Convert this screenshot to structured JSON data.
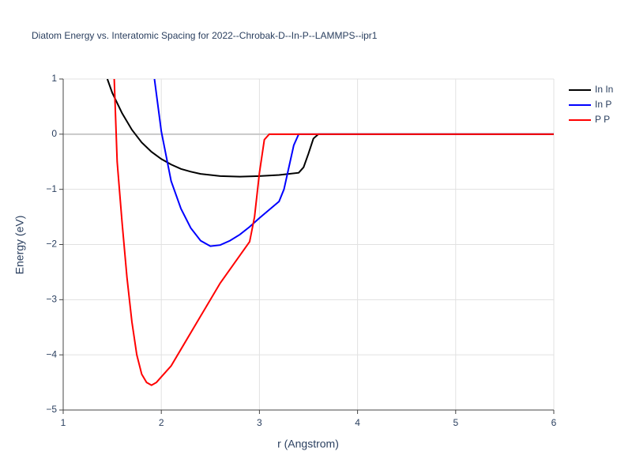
{
  "chart_data": {
    "type": "line",
    "title": "Diatom Energy vs. Interatomic Spacing for 2022--Chrobak-D--In-P--LAMMPS--ipr1",
    "x_label": "r (Angstrom)",
    "y_label": "Energy (eV)",
    "xlim": [
      1,
      6
    ],
    "ylim": [
      -5,
      1
    ],
    "xticks": [
      1,
      2,
      3,
      4,
      5,
      6
    ],
    "yticks": [
      {
        "value": -5,
        "label": "−5"
      },
      {
        "value": -4,
        "label": "−4"
      },
      {
        "value": -3,
        "label": "−3"
      },
      {
        "value": -2,
        "label": "−2"
      },
      {
        "value": -1,
        "label": "−1"
      },
      0,
      1
    ],
    "grid": true,
    "legend": "right",
    "series": [
      {
        "name": "In In",
        "color": "#000000",
        "x": [
          1.45,
          1.5,
          1.6,
          1.7,
          1.8,
          1.9,
          2.0,
          2.1,
          2.2,
          2.3,
          2.4,
          2.6,
          2.8,
          3.0,
          3.2,
          3.4,
          3.45,
          3.5,
          3.55,
          3.6,
          6
        ],
        "values": [
          1.0,
          0.75,
          0.38,
          0.08,
          -0.15,
          -0.32,
          -0.45,
          -0.55,
          -0.63,
          -0.68,
          -0.72,
          -0.76,
          -0.77,
          -0.76,
          -0.74,
          -0.7,
          -0.6,
          -0.35,
          -0.08,
          0,
          0
        ]
      },
      {
        "name": "In P",
        "color": "#0000ff",
        "x": [
          1.93,
          2.0,
          2.1,
          2.2,
          2.3,
          2.4,
          2.5,
          2.6,
          2.7,
          2.8,
          2.9,
          3.0,
          3.1,
          3.2,
          3.25,
          3.3,
          3.35,
          3.4,
          6
        ],
        "values": [
          1.0,
          0.05,
          -0.85,
          -1.35,
          -1.7,
          -1.93,
          -2.03,
          -2.01,
          -1.93,
          -1.82,
          -1.68,
          -1.52,
          -1.37,
          -1.22,
          -1.0,
          -0.6,
          -0.2,
          0,
          0
        ]
      },
      {
        "name": "P P",
        "color": "#ff0000",
        "x": [
          1.52,
          1.55,
          1.6,
          1.65,
          1.7,
          1.75,
          1.8,
          1.85,
          1.9,
          1.95,
          2.0,
          2.1,
          2.2,
          2.4,
          2.6,
          2.8,
          2.9,
          2.95,
          3.0,
          3.05,
          3.1,
          6
        ],
        "values": [
          1.0,
          -0.5,
          -1.6,
          -2.6,
          -3.4,
          -4.0,
          -4.35,
          -4.5,
          -4.55,
          -4.5,
          -4.4,
          -4.2,
          -3.9,
          -3.3,
          -2.7,
          -2.2,
          -1.95,
          -1.5,
          -0.7,
          -0.1,
          0,
          0
        ]
      }
    ]
  }
}
